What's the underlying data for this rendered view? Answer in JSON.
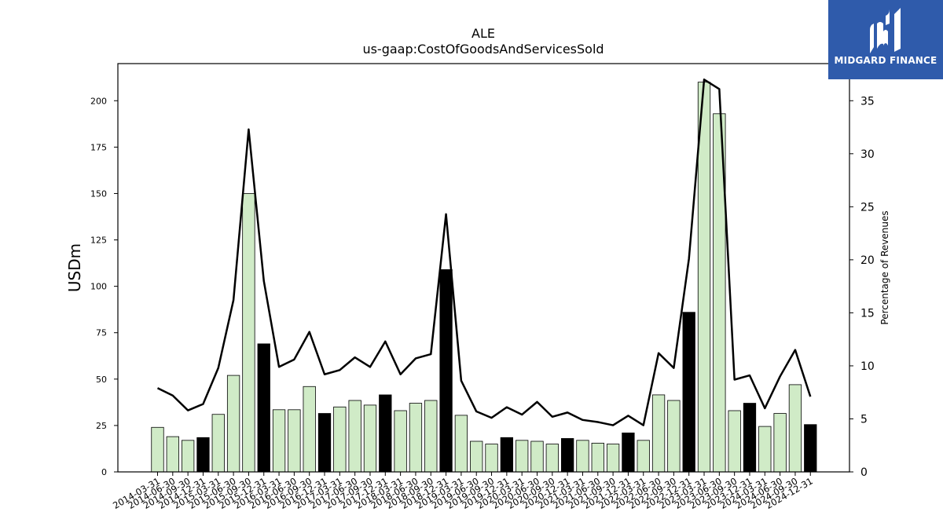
{
  "brand": {
    "name": "MIDGARD FINANCE",
    "icon": "midgard-m-logo-icon",
    "color": "#2f5bab"
  },
  "chart_data": {
    "type": "bar",
    "title": "ALE",
    "subtitle": "us-gaap:CostOfGoodsAndServicesSold",
    "ylabel": "USDm",
    "y2label": "Percentage of Revenues",
    "ylim": [
      0,
      220
    ],
    "y2lim": [
      0,
      38.5
    ],
    "yticks": [
      0,
      25,
      50,
      75,
      100,
      125,
      150,
      175,
      200
    ],
    "y2ticks": [
      0,
      5,
      10,
      15,
      20,
      25,
      30,
      35
    ],
    "bar_color_quarter": "#d0ebc7",
    "bar_color_q4": "#000000",
    "line_color": "#000000",
    "categories": [
      "2014-03-31",
      "2014-06-30",
      "2014-09-30",
      "2014-12-31",
      "2015-03-31",
      "2015-06-30",
      "2015-09-30",
      "2015-12-31",
      "2016-03-31",
      "2016-06-30",
      "2016-09-30",
      "2016-12-31",
      "2017-03-31",
      "2017-06-30",
      "2017-09-30",
      "2017-12-31",
      "2018-03-31",
      "2018-06-30",
      "2018-09-30",
      "2018-12-31",
      "2019-03-31",
      "2019-06-30",
      "2019-09-30",
      "2019-12-31",
      "2020-03-31",
      "2020-06-30",
      "2020-09-30",
      "2020-12-31",
      "2021-03-31",
      "2021-06-30",
      "2021-09-30",
      "2021-12-31",
      "2022-03-31",
      "2022-06-30",
      "2022-09-30",
      "2022-12-31",
      "2023-03-31",
      "2023-06-30",
      "2023-09-30",
      "2023-12-31",
      "2024-03-31",
      "2024-06-30",
      "2024-09-30",
      "2024-12-31"
    ],
    "series": [
      {
        "name": "USDm",
        "type": "bar",
        "values": [
          24,
          19,
          17,
          18.5,
          31,
          52,
          150,
          69,
          33.5,
          33.5,
          46,
          31.5,
          35,
          38.5,
          36,
          41.5,
          33,
          37,
          38.5,
          109,
          30.5,
          16.5,
          15,
          18.5,
          17,
          16.5,
          15,
          18,
          17,
          15.5,
          15,
          21,
          17,
          41.5,
          38.5,
          86,
          210,
          193,
          33,
          37,
          24.5,
          31.5,
          47,
          25.5
        ]
      },
      {
        "name": "Percentage of Revenues",
        "type": "line",
        "values": [
          7.9,
          7.2,
          5.8,
          6.4,
          9.8,
          16.2,
          32.3,
          18.0,
          9.9,
          10.6,
          13.2,
          9.2,
          9.6,
          10.8,
          9.9,
          12.3,
          9.2,
          10.7,
          11.1,
          24.3,
          8.6,
          5.7,
          5.1,
          6.1,
          5.4,
          6.6,
          5.2,
          5.6,
          4.9,
          4.7,
          4.4,
          5.3,
          4.4,
          11.2,
          9.8,
          20.1,
          37.0,
          36.1,
          8.7,
          9.1,
          6.0,
          9.0,
          11.5,
          7.1
        ]
      }
    ],
    "grid": false
  }
}
